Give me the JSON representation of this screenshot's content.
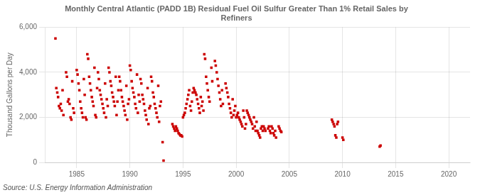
{
  "chart_data": {
    "type": "scatter",
    "title": "Monthly Central Atlantic (PADD 1B) Residual Fuel Oil Sulfur Greater Than 1% Retail Sales by\nRefiners",
    "ylabel": "Thousand Gallons per Day",
    "annotations": [
      "Source: U.S. Energy Information Administration"
    ],
    "color": "#cc0000",
    "marker": "square",
    "grid": true,
    "xlim": [
      1982,
      2022
    ],
    "xticks": [
      1985,
      1990,
      1995,
      2000,
      2005,
      2010,
      2015,
      2020
    ],
    "ylim": [
      0,
      6000
    ],
    "yticks": [
      0,
      {
        "value": 2000,
        "label": "2,000"
      },
      {
        "value": 4000,
        "label": "4,000"
      },
      {
        "value": 6000,
        "label": "6,000"
      }
    ],
    "x": [
      1983.0,
      1983.08,
      1983.17,
      1983.25,
      1983.33,
      1983.42,
      1983.5,
      1983.58,
      1983.67,
      1983.75,
      1984.0,
      1984.08,
      1984.17,
      1984.25,
      1984.33,
      1984.42,
      1984.5,
      1984.58,
      1984.67,
      1984.75,
      1985.0,
      1985.08,
      1985.17,
      1985.25,
      1985.33,
      1985.42,
      1985.5,
      1985.58,
      1985.67,
      1985.75,
      1985.83,
      1985.92,
      1986.0,
      1986.08,
      1986.17,
      1986.25,
      1986.33,
      1986.42,
      1986.5,
      1986.58,
      1986.67,
      1986.75,
      1986.83,
      1986.92,
      1987.0,
      1987.08,
      1987.17,
      1987.25,
      1987.33,
      1987.42,
      1987.5,
      1987.58,
      1987.67,
      1987.75,
      1987.83,
      1987.92,
      1988.0,
      1988.08,
      1988.17,
      1988.25,
      1988.33,
      1988.42,
      1988.5,
      1988.58,
      1988.67,
      1988.75,
      1988.83,
      1988.92,
      1989.0,
      1989.08,
      1989.17,
      1989.25,
      1989.33,
      1989.42,
      1989.5,
      1989.58,
      1989.67,
      1989.75,
      1989.83,
      1989.92,
      1990.0,
      1990.08,
      1990.17,
      1990.25,
      1990.33,
      1990.42,
      1990.5,
      1990.58,
      1990.67,
      1990.75,
      1990.83,
      1990.92,
      1991.0,
      1991.08,
      1991.17,
      1991.25,
      1991.33,
      1991.42,
      1991.5,
      1991.58,
      1991.67,
      1991.75,
      1991.83,
      1991.92,
      1992.0,
      1992.08,
      1992.17,
      1992.25,
      1992.33,
      1992.42,
      1992.5,
      1992.58,
      1992.67,
      1992.75,
      1992.83,
      1992.92,
      1993.08,
      1993.17,
      1994.0,
      1994.08,
      1994.17,
      1994.25,
      1994.33,
      1994.42,
      1994.5,
      1994.58,
      1994.67,
      1994.75,
      1994.83,
      1994.92,
      1995.0,
      1995.08,
      1995.17,
      1995.25,
      1995.33,
      1995.42,
      1995.5,
      1995.58,
      1995.67,
      1995.75,
      1995.83,
      1995.92,
      1996.0,
      1996.08,
      1996.17,
      1996.25,
      1996.33,
      1996.42,
      1996.5,
      1996.58,
      1996.67,
      1996.75,
      1996.83,
      1996.92,
      1997.0,
      1997.08,
      1997.17,
      1997.25,
      1997.33,
      1997.42,
      1997.5,
      1997.67,
      1997.75,
      1998.0,
      1998.08,
      1998.17,
      1998.25,
      1998.33,
      1998.42,
      1998.5,
      1998.58,
      1998.67,
      1998.75,
      1999.0,
      1999.08,
      1999.17,
      1999.25,
      1999.33,
      1999.42,
      1999.5,
      1999.58,
      1999.67,
      1999.75,
      1999.83,
      1999.92,
      2000.0,
      2000.08,
      2000.17,
      2000.25,
      2000.33,
      2000.42,
      2000.5,
      2000.58,
      2000.67,
      2000.75,
      2000.83,
      2000.92,
      2001.0,
      2001.08,
      2001.17,
      2001.25,
      2001.33,
      2001.42,
      2001.5,
      2001.58,
      2001.67,
      2001.75,
      2001.83,
      2001.92,
      2002.0,
      2002.08,
      2002.17,
      2002.25,
      2002.33,
      2002.42,
      2002.5,
      2002.58,
      2002.67,
      2002.75,
      2003.0,
      2003.08,
      2003.17,
      2003.25,
      2003.33,
      2003.42,
      2003.5,
      2003.58,
      2003.67,
      2003.75,
      2004.0,
      2004.08,
      2004.17,
      2004.25,
      2009.0,
      2009.08,
      2009.17,
      2009.25,
      2009.33,
      2009.42,
      2009.5,
      2009.58,
      2010.0,
      2010.08,
      2013.5,
      2013.58
    ],
    "values": [
      5500,
      3300,
      3100,
      2900,
      2500,
      2400,
      2600,
      2300,
      3200,
      2100,
      4000,
      3800,
      2700,
      2800,
      2600,
      2000,
      1900,
      3600,
      2400,
      2200,
      4100,
      3900,
      3500,
      3200,
      2700,
      2400,
      2200,
      2000,
      3700,
      3000,
      2000,
      1900,
      4800,
      4600,
      3800,
      3500,
      3200,
      2900,
      2700,
      2500,
      4200,
      2100,
      2000,
      3300,
      4000,
      3700,
      3200,
      3000,
      2800,
      2600,
      2400,
      2200,
      3500,
      2000,
      2800,
      2500,
      4200,
      4000,
      3600,
      3400,
      3100,
      2900,
      2700,
      2500,
      3800,
      2100,
      2700,
      3200,
      3800,
      3600,
      3200,
      2900,
      2700,
      2500,
      2300,
      2100,
      3400,
      1900,
      2600,
      2800,
      4300,
      4100,
      3600,
      3300,
      3100,
      2900,
      2600,
      2400,
      3900,
      2200,
      3000,
      2700,
      3700,
      3500,
      3000,
      2800,
      2600,
      2300,
      2100,
      1900,
      3300,
      1700,
      2400,
      2500,
      3800,
      3600,
      3100,
      2900,
      2600,
      2400,
      2200,
      2000,
      3400,
      1800,
      2500,
      2700,
      900,
      80,
      1700,
      1600,
      1500,
      1400,
      1600,
      1500,
      1400,
      1300,
      1250,
      1200,
      1200,
      1150,
      2000,
      2100,
      2200,
      2400,
      2600,
      2800,
      3000,
      3200,
      2500,
      2300,
      2700,
      3100,
      3300,
      3200,
      3100,
      3000,
      2800,
      2600,
      2400,
      2200,
      2900,
      2500,
      2700,
      2300,
      4800,
      4600,
      3800,
      3500,
      3200,
      2900,
      2700,
      4200,
      3600,
      4500,
      4300,
      4000,
      3700,
      3400,
      3100,
      2800,
      2500,
      3200,
      2600,
      3500,
      3300,
      3100,
      2900,
      2600,
      2400,
      2200,
      2000,
      2800,
      2100,
      2300,
      2500,
      2000,
      2100,
      2200,
      2000,
      1900,
      1800,
      1700,
      1600,
      2300,
      2000,
      1500,
      1700,
      2300,
      2200,
      2100,
      2000,
      1900,
      1800,
      1700,
      1500,
      2000,
      1600,
      1400,
      1800,
      1400,
      1300,
      1200,
      1100,
      1500,
      1600,
      1400,
      1600,
      1500,
      1400,
      1500,
      1600,
      1400,
      1300,
      1600,
      1500,
      1300,
      1200,
      1400,
      1100,
      1600,
      1500,
      1400,
      1350,
      1900,
      1800,
      1700,
      1600,
      1200,
      1100,
      1700,
      1800,
      1100,
      1000,
      700,
      750
    ]
  }
}
